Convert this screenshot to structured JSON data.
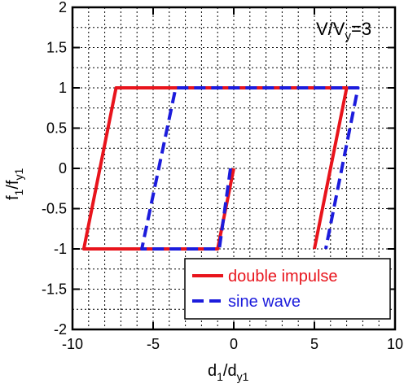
{
  "chart_data": {
    "type": "line",
    "title": "",
    "annotation": {
      "main": "V/V",
      "sub": "y",
      "suffix": "=3"
    },
    "xlabel": {
      "main": "d",
      "sub1": "1",
      "mid": "/d",
      "sub2": "y1"
    },
    "ylabel": {
      "main": "f",
      "sub1": "1",
      "mid": "/f",
      "sub2": "y1"
    },
    "xlim": [
      -10,
      10
    ],
    "ylim": [
      -2,
      2
    ],
    "xticks": [
      -10,
      -5,
      0,
      5,
      10
    ],
    "yticks": [
      -2,
      -1.5,
      -1,
      -0.5,
      0,
      0.5,
      1,
      1.5,
      2
    ],
    "xtick_labels": [
      "-10",
      "-5",
      "0",
      "5",
      "10"
    ],
    "ytick_labels": [
      "-2",
      "-1.5",
      "-1",
      "-0.5",
      "0",
      "0.5",
      "1",
      "1.5",
      "2"
    ],
    "grid": true,
    "legend_position": "bottom-right",
    "series": [
      {
        "name": "double impulse",
        "color": "#e8141c",
        "style": "solid",
        "x": [
          0,
          -1,
          -9.3,
          -7.3,
          7,
          5
        ],
        "y": [
          0,
          -1,
          -1,
          1,
          1,
          -1
        ]
      },
      {
        "name": "sine wave",
        "color": "#1c1cdc",
        "style": "dashed",
        "x": [
          -0.2,
          -0.9,
          -5.7,
          -3.6,
          7.7,
          5.7
        ],
        "y": [
          0,
          -1,
          -1,
          1,
          1,
          -1
        ]
      }
    ]
  }
}
